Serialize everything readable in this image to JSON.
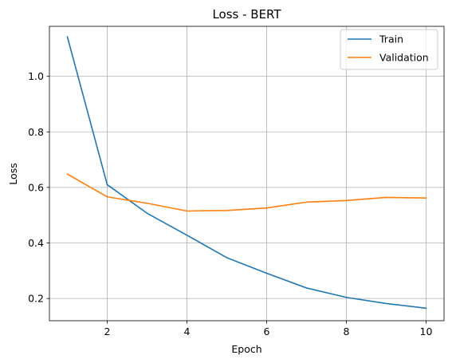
{
  "chart_data": {
    "type": "line",
    "title": "Loss - BERT",
    "xlabel": "Epoch",
    "ylabel": "Loss",
    "x": [
      1,
      2,
      3,
      4,
      5,
      6,
      7,
      8,
      9,
      10
    ],
    "xticks": [
      "2",
      "4",
      "6",
      "8",
      "10"
    ],
    "yticks": [
      "0.2",
      "0.4",
      "0.6",
      "0.8",
      "1.0"
    ],
    "xlim": [
      0.55,
      10.45
    ],
    "ylim": [
      0.12,
      1.18
    ],
    "grid": true,
    "legend_position": "top-right",
    "series": [
      {
        "name": "Train",
        "color": "#1f77b4",
        "values": [
          1.142,
          0.61,
          0.507,
          0.428,
          0.347,
          0.291,
          0.238,
          0.204,
          0.182,
          0.165
        ]
      },
      {
        "name": "Validation",
        "color": "#ff7f0e",
        "values": [
          0.648,
          0.566,
          0.543,
          0.515,
          0.517,
          0.526,
          0.547,
          0.553,
          0.564,
          0.562
        ]
      }
    ]
  }
}
